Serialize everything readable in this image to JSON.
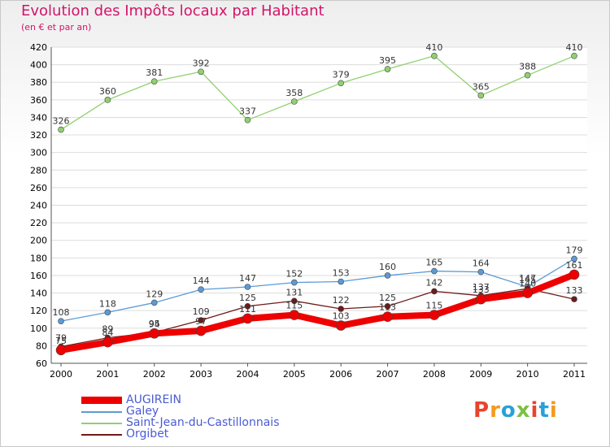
{
  "chart_data": {
    "type": "line",
    "title": "Evolution des Impôts locaux par Habitant",
    "subtitle": "(en € et par an)",
    "categories": [
      "2000",
      "2001",
      "2002",
      "2003",
      "2004",
      "2005",
      "2006",
      "2007",
      "2008",
      "2009",
      "2010",
      "2011"
    ],
    "ylim": [
      60,
      420
    ],
    "yticks": [
      "60",
      "80",
      "100",
      "120",
      "140",
      "160",
      "180",
      "200",
      "220",
      "240",
      "260",
      "280",
      "300",
      "320",
      "340",
      "360",
      "380",
      "400",
      "420"
    ],
    "series": [
      {
        "name": "AUGIREIN",
        "color": "#ee0000",
        "values": [
          75,
          84,
          94,
          97,
          111,
          115,
          103,
          113,
          115,
          133,
          140,
          161
        ]
      },
      {
        "name": "Galey",
        "color": "#5b9bd5",
        "values": [
          108,
          118,
          129,
          144,
          147,
          152,
          153,
          160,
          165,
          164,
          147,
          179
        ]
      },
      {
        "name": "Saint-Jean-du-Castillonnais",
        "color": "#90d070",
        "values": [
          326,
          360,
          381,
          392,
          337,
          358,
          379,
          395,
          410,
          365,
          388,
          410
        ]
      },
      {
        "name": "Orgibet",
        "color": "#6e1a1a",
        "values": [
          79,
          89,
          95,
          109,
          125,
          131,
          122,
          125,
          142,
          137,
          145,
          133
        ]
      }
    ]
  },
  "brand": {
    "text": "Proxiti"
  }
}
